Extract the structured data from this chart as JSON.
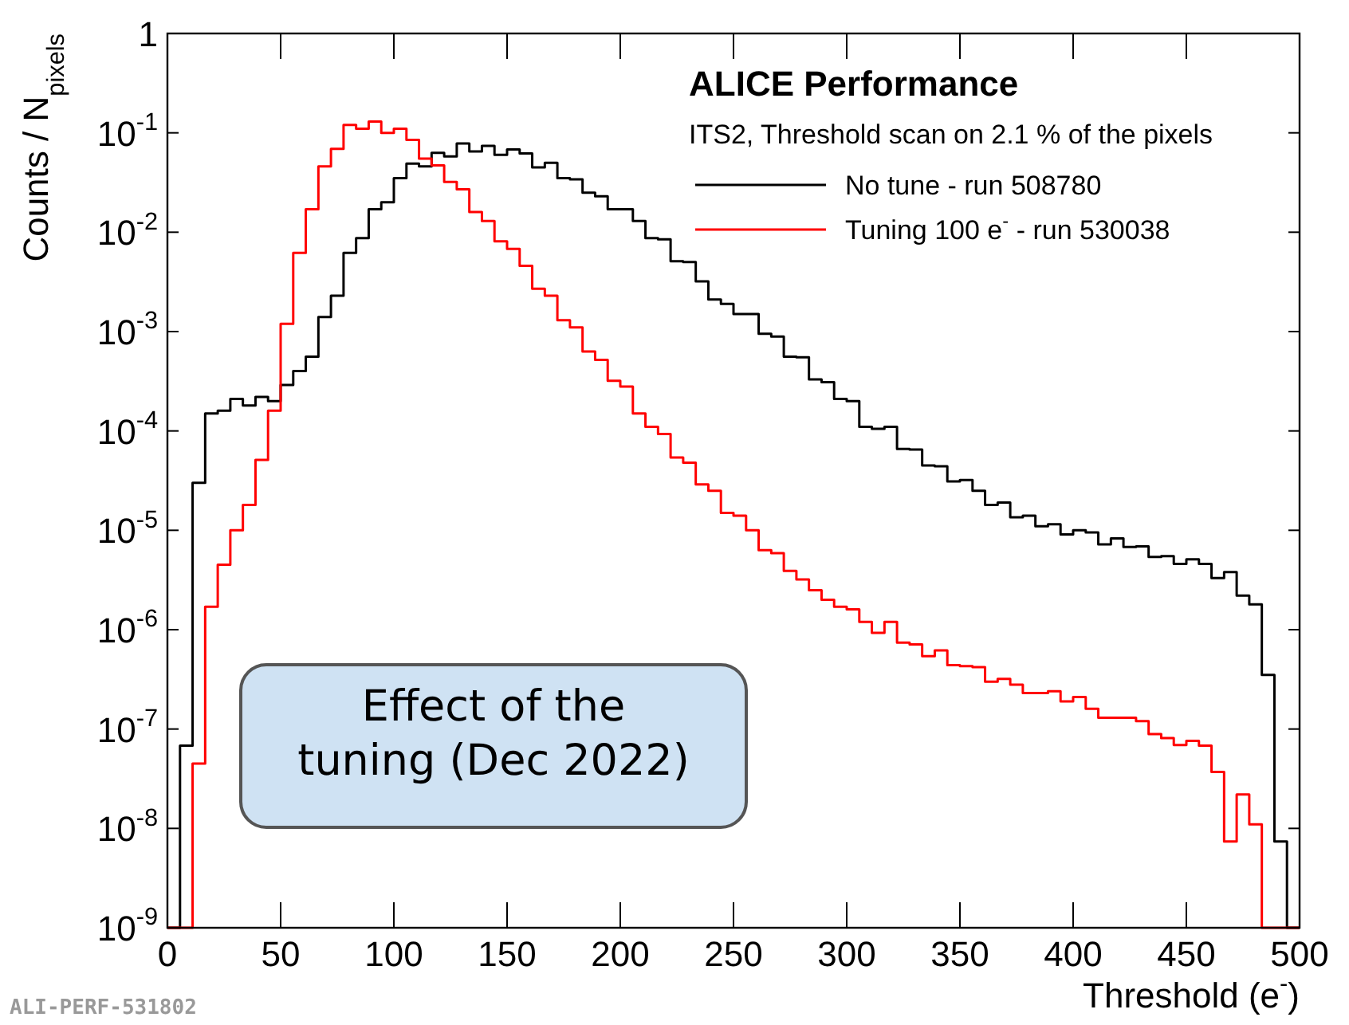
{
  "chart_data": {
    "type": "histogram",
    "title": "ALICE Performance",
    "subtitle": "ITS2, Threshold scan on 2.1 % of the pixels",
    "xlabel": "Threshold (e$^{-}$)",
    "ylabel": "Counts / N$_{pixels}$",
    "bins": [
      0,
      5.56,
      11.11,
      16.67,
      22.22,
      27.78,
      33.33,
      38.89,
      44.44,
      50,
      55.56,
      61.11,
      66.67,
      72.22,
      77.78,
      83.33,
      88.89,
      94.44,
      100,
      105.56,
      111.11,
      116.67,
      122.22,
      127.78,
      133.33,
      138.89,
      144.44,
      150,
      155.56,
      161.11,
      166.67,
      172.22,
      177.78,
      183.33,
      188.89,
      194.44,
      200,
      205.56,
      211.11,
      216.67,
      222.22,
      227.78,
      233.33,
      238.89,
      244.44,
      250,
      255.56,
      261.11,
      266.67,
      272.22,
      277.78,
      283.33,
      288.89,
      294.44,
      300,
      305.56,
      311.11,
      316.67,
      322.22,
      327.78,
      333.33,
      338.89,
      344.44,
      350,
      355.56,
      361.11,
      366.67,
      372.22,
      377.78,
      383.33,
      388.89,
      394.44,
      400,
      405.56,
      411.11,
      416.67,
      422.22,
      427.78,
      433.33,
      438.89,
      444.44,
      450,
      455.56,
      461.11,
      466.67,
      472.22,
      477.78,
      483.33,
      488.89,
      494.44,
      500
    ],
    "series": [
      {
        "name": "No tune - run 508780",
        "color": "#000000",
        "values": [
          null,
          6.8e-08,
          3e-05,
          0.00015,
          0.00016,
          0.00021,
          0.00018,
          0.00022,
          0.0002,
          0.00029,
          0.0004,
          0.00056,
          0.0014,
          0.0023,
          0.0062,
          0.0087,
          0.017,
          0.02,
          0.035,
          0.049,
          0.046,
          0.063,
          0.058,
          0.078,
          0.065,
          0.074,
          0.06,
          0.068,
          0.062,
          0.045,
          0.05,
          0.035,
          0.034,
          0.025,
          0.023,
          0.017,
          0.017,
          0.013,
          0.0087,
          0.0085,
          0.0051,
          0.005,
          0.0032,
          0.0021,
          0.0019,
          0.0015,
          0.0015,
          0.00095,
          0.00089,
          0.00056,
          0.00055,
          0.00033,
          0.00031,
          0.00021,
          0.0002,
          0.00011,
          0.000105,
          0.00011,
          6.6e-05,
          6.5e-05,
          4.5e-05,
          4.4e-05,
          3.1e-05,
          3.2e-05,
          2.5e-05,
          1.8e-05,
          1.9e-05,
          1.35e-05,
          1.4e-05,
          1.1e-05,
          1.15e-05,
          9.1e-06,
          1e-05,
          9.5e-06,
          7.2e-06,
          8.3e-06,
          6.8e-06,
          6.9e-06,
          5.4e-06,
          5.5e-06,
          4.6e-06,
          5.1e-06,
          4.6e-06,
          3.3e-06,
          3.8e-06,
          2.2e-06,
          1.8e-06,
          3.5e-07,
          7.4e-09,
          null
        ]
      },
      {
        "name": "Tuning 100 e$^{-}$ - run 530038",
        "color": "#ff0000",
        "values": [
          null,
          null,
          4.5e-08,
          1.7e-06,
          4.5e-06,
          1e-05,
          1.8e-05,
          5.1e-05,
          0.00016,
          0.0012,
          0.0062,
          0.017,
          0.046,
          0.069,
          0.12,
          0.11,
          0.13,
          0.1,
          0.11,
          0.085,
          0.055,
          0.047,
          0.032,
          0.027,
          0.016,
          0.013,
          0.0081,
          0.0068,
          0.0046,
          0.0027,
          0.0023,
          0.0013,
          0.0011,
          0.00063,
          0.00052,
          0.00032,
          0.00028,
          0.00015,
          0.00011,
          9.3e-05,
          5.4e-05,
          4.8e-05,
          2.9e-05,
          2.5e-05,
          1.5e-05,
          1.4e-05,
          1e-05,
          6.3e-06,
          5.9e-06,
          3.9e-06,
          3.2e-06,
          2.5e-06,
          2e-06,
          1.7e-06,
          1.6e-06,
          1.2e-06,
          9.3e-07,
          1.2e-06,
          7.4e-07,
          7.1e-07,
          5.4e-07,
          6.2e-07,
          4.4e-07,
          4.3e-07,
          4.2e-07,
          3e-07,
          3.2e-07,
          2.8e-07,
          2.3e-07,
          2.3e-07,
          2.4e-07,
          1.9e-07,
          2.1e-07,
          1.6e-07,
          1.3e-07,
          1.3e-07,
          1.3e-07,
          1.2e-07,
          8.9e-08,
          8.1e-08,
          6.9e-08,
          7.6e-08,
          6.8e-08,
          3.7e-08,
          7.4e-09,
          2.2e-08,
          1.1e-08,
          null,
          null,
          null
        ]
      }
    ],
    "xlim": [
      0,
      500
    ],
    "xticks": [
      0,
      50,
      100,
      150,
      200,
      250,
      300,
      350,
      400,
      450,
      500
    ],
    "ylim": [
      1e-09,
      1
    ],
    "yticks": [
      {
        "value": 1e-09,
        "label": "10$^{-9}$"
      },
      {
        "value": 1e-08,
        "label": "10$^{-8}$"
      },
      {
        "value": 1e-07,
        "label": "10$^{-7}$"
      },
      {
        "value": 1e-06,
        "label": "10$^{-6}$"
      },
      {
        "value": 1e-05,
        "label": "10$^{-5}$"
      },
      {
        "value": 0.0001,
        "label": "10$^{-4}$"
      },
      {
        "value": 0.001,
        "label": "10$^{-3}$"
      },
      {
        "value": 0.01,
        "label": "10$^{-2}$"
      },
      {
        "value": 0.1,
        "label": "10$^{-1}$"
      },
      1
    ],
    "log": true,
    "grid": false,
    "legend": "top right",
    "annotations": [
      "Effect of the tuning (Dec 2022)",
      "ALI-PERF-531802"
    ]
  }
}
